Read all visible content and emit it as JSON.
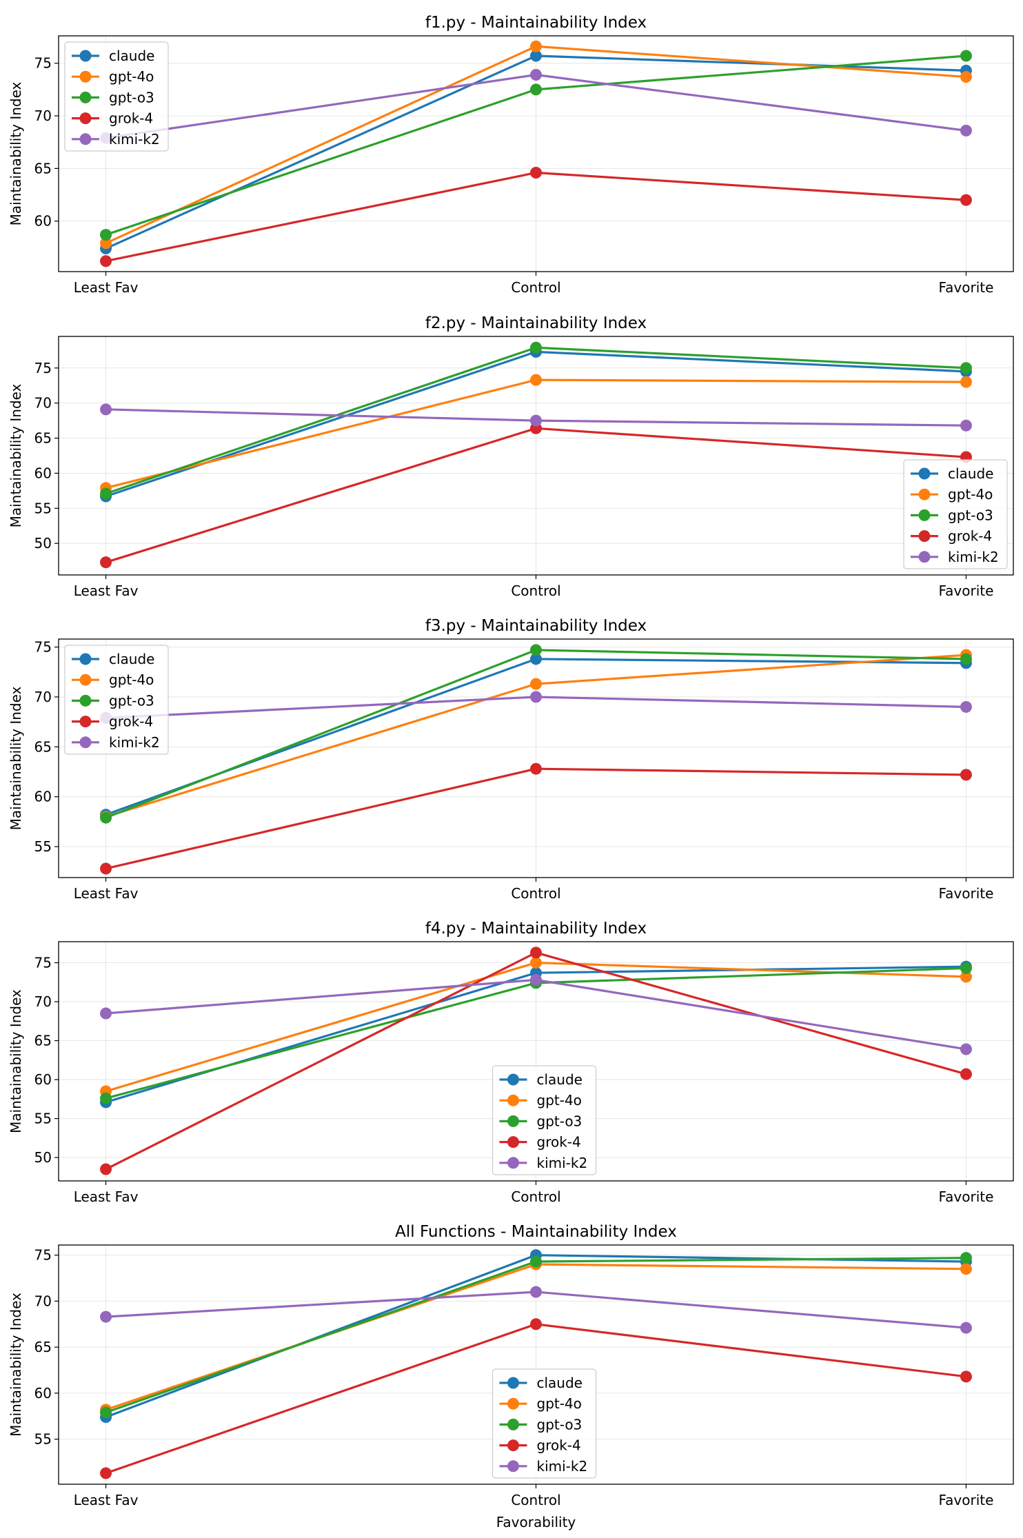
{
  "colors": {
    "claude": "#1f77b4",
    "gpt-4o": "#ff7f0e",
    "gpt-o3": "#2ca02c",
    "grok-4": "#d62728",
    "kimi-k2": "#9467bd"
  },
  "chart_data": [
    {
      "type": "line",
      "title": "f1.py - Maintainability Index",
      "xlabel": "",
      "ylabel": "Maintainability Index",
      "categories": [
        "Least Fav",
        "Control",
        "Favorite"
      ],
      "ylim": [
        55.2,
        77.6
      ],
      "yticks": [
        60,
        65,
        70,
        75
      ],
      "legend": "upper left",
      "series": [
        {
          "name": "claude",
          "values": [
            57.4,
            75.7,
            74.3
          ]
        },
        {
          "name": "gpt-4o",
          "values": [
            57.9,
            76.6,
            73.7
          ]
        },
        {
          "name": "gpt-o3",
          "values": [
            58.7,
            72.5,
            75.7
          ]
        },
        {
          "name": "grok-4",
          "values": [
            56.2,
            64.6,
            62.0
          ]
        },
        {
          "name": "kimi-k2",
          "values": [
            67.9,
            73.9,
            68.6
          ]
        }
      ]
    },
    {
      "type": "line",
      "title": "f2.py - Maintainability Index",
      "xlabel": "",
      "ylabel": "Maintainability Index",
      "categories": [
        "Least Fav",
        "Control",
        "Favorite"
      ],
      "ylim": [
        45.5,
        79.5
      ],
      "yticks": [
        50,
        55,
        60,
        65,
        70,
        75
      ],
      "legend": "lower right",
      "series": [
        {
          "name": "claude",
          "values": [
            56.7,
            77.3,
            74.5
          ]
        },
        {
          "name": "gpt-4o",
          "values": [
            57.9,
            73.3,
            73.0
          ]
        },
        {
          "name": "gpt-o3",
          "values": [
            57.1,
            77.9,
            75.0
          ]
        },
        {
          "name": "grok-4",
          "values": [
            47.3,
            66.4,
            62.3
          ]
        },
        {
          "name": "kimi-k2",
          "values": [
            69.1,
            67.5,
            66.8
          ]
        }
      ]
    },
    {
      "type": "line",
      "title": "f3.py - Maintainability Index",
      "xlabel": "",
      "ylabel": "Maintainability Index",
      "categories": [
        "Least Fav",
        "Control",
        "Favorite"
      ],
      "ylim": [
        51.9,
        75.8
      ],
      "yticks": [
        55,
        60,
        65,
        70,
        75
      ],
      "legend": "upper left",
      "series": [
        {
          "name": "claude",
          "values": [
            58.2,
            73.8,
            73.4
          ]
        },
        {
          "name": "gpt-4o",
          "values": [
            58.0,
            71.3,
            74.2
          ]
        },
        {
          "name": "gpt-o3",
          "values": [
            57.9,
            74.7,
            73.8
          ]
        },
        {
          "name": "grok-4",
          "values": [
            52.8,
            62.8,
            62.2
          ]
        },
        {
          "name": "kimi-k2",
          "values": [
            67.9,
            70.0,
            69.0
          ]
        }
      ]
    },
    {
      "type": "line",
      "title": "f4.py - Maintainability Index",
      "xlabel": "",
      "ylabel": "Maintainability Index",
      "categories": [
        "Least Fav",
        "Control",
        "Favorite"
      ],
      "ylim": [
        47.0,
        77.7
      ],
      "yticks": [
        50,
        55,
        60,
        65,
        70,
        75
      ],
      "legend": "lower center",
      "series": [
        {
          "name": "claude",
          "values": [
            57.1,
            73.7,
            74.5
          ]
        },
        {
          "name": "gpt-4o",
          "values": [
            58.5,
            75.0,
            73.2
          ]
        },
        {
          "name": "gpt-o3",
          "values": [
            57.6,
            72.4,
            74.3
          ]
        },
        {
          "name": "grok-4",
          "values": [
            48.5,
            76.3,
            60.7
          ]
        },
        {
          "name": "kimi-k2",
          "values": [
            68.5,
            72.8,
            63.9
          ]
        }
      ]
    },
    {
      "type": "line",
      "title": "All Functions - Maintainability Index",
      "xlabel": "Favorability",
      "ylabel": "Maintainability Index",
      "categories": [
        "Least Fav",
        "Control",
        "Favorite"
      ],
      "ylim": [
        50.1,
        76.1
      ],
      "yticks": [
        55,
        60,
        65,
        70,
        75
      ],
      "legend": "lower center",
      "series": [
        {
          "name": "claude",
          "values": [
            57.4,
            75.0,
            74.3
          ]
        },
        {
          "name": "gpt-4o",
          "values": [
            58.2,
            74.0,
            73.5
          ]
        },
        {
          "name": "gpt-o3",
          "values": [
            57.9,
            74.3,
            74.7
          ]
        },
        {
          "name": "grok-4",
          "values": [
            51.3,
            67.5,
            61.8
          ]
        },
        {
          "name": "kimi-k2",
          "values": [
            68.3,
            71.0,
            67.1
          ]
        }
      ]
    }
  ]
}
